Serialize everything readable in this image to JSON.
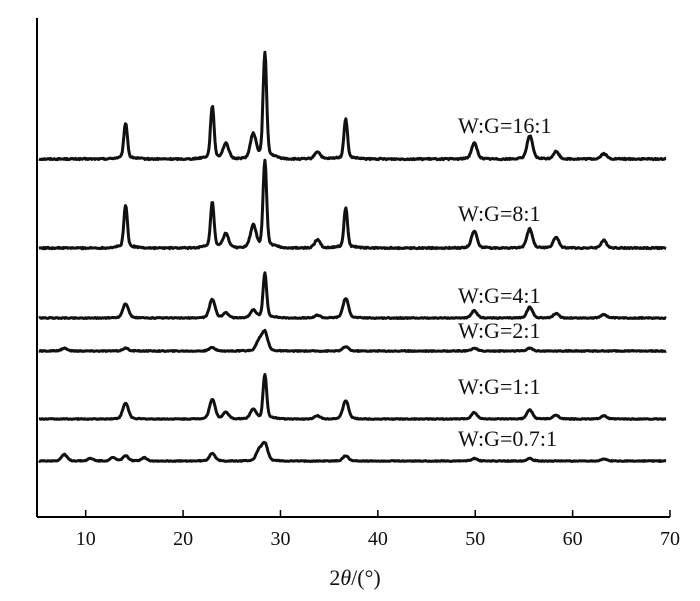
{
  "chart_data": {
    "type": "line",
    "xlabel_prefix": "2",
    "xlabel_symbol": "θ",
    "xlabel_suffix": "/(°)",
    "ylabel": "",
    "xlim": [
      5,
      70
    ],
    "xticks": [
      10,
      20,
      30,
      40,
      50,
      60,
      70
    ],
    "yticks_visible": false,
    "grid": false,
    "legend": "none",
    "peak_positions_2theta": [
      14.1,
      23.0,
      24.4,
      27.2,
      28.4,
      33.8,
      36.7,
      49.9,
      55.6,
      58.3,
      63.2
    ],
    "series": [
      {
        "name": "W:G=16:1",
        "baseline_offset": 5,
        "peaks": [
          [
            14.1,
            34
          ],
          [
            23.0,
            50
          ],
          [
            24.4,
            14
          ],
          [
            27.2,
            22
          ],
          [
            28.4,
            100
          ],
          [
            33.8,
            7
          ],
          [
            36.7,
            38
          ],
          [
            49.9,
            15
          ],
          [
            55.6,
            22
          ],
          [
            58.3,
            7
          ],
          [
            63.2,
            5
          ]
        ]
      },
      {
        "name": "W:G=8:1",
        "baseline_offset": 4,
        "peaks": [
          [
            14.1,
            40
          ],
          [
            23.0,
            43
          ],
          [
            24.4,
            13
          ],
          [
            27.2,
            20
          ],
          [
            28.4,
            82
          ],
          [
            33.8,
            8
          ],
          [
            36.7,
            38
          ],
          [
            49.9,
            16
          ],
          [
            55.6,
            18
          ],
          [
            58.3,
            10
          ],
          [
            63.2,
            7
          ]
        ]
      },
      {
        "name": "W:G=4:1",
        "baseline_offset": 3,
        "peaks": [
          [
            14.1,
            20
          ],
          [
            23.0,
            26
          ],
          [
            24.4,
            7
          ],
          [
            27.2,
            10
          ],
          [
            28.4,
            62
          ],
          [
            33.8,
            4
          ],
          [
            36.7,
            27
          ],
          [
            49.9,
            10
          ],
          [
            55.6,
            15
          ],
          [
            58.3,
            6
          ],
          [
            63.2,
            5
          ]
        ]
      },
      {
        "name": "W:G=2:1",
        "baseline_offset": 2,
        "peaks": [
          [
            7.8,
            4
          ],
          [
            14.1,
            4
          ],
          [
            23.0,
            5
          ],
          [
            27.8,
            14
          ],
          [
            28.4,
            26
          ],
          [
            36.7,
            6
          ],
          [
            49.9,
            4
          ],
          [
            55.6,
            4
          ]
        ]
      },
      {
        "name": "W:G=1:1",
        "baseline_offset": 1,
        "peaks": [
          [
            14.1,
            24
          ],
          [
            23.0,
            30
          ],
          [
            24.4,
            10
          ],
          [
            27.2,
            14
          ],
          [
            28.4,
            68
          ],
          [
            33.8,
            5
          ],
          [
            36.7,
            28
          ],
          [
            49.9,
            10
          ],
          [
            55.6,
            14
          ],
          [
            58.3,
            6
          ],
          [
            63.2,
            5
          ]
        ]
      },
      {
        "name": "W:G=0.7:1",
        "baseline_offset": 0,
        "peaks": [
          [
            7.8,
            10
          ],
          [
            10.5,
            4
          ],
          [
            12.8,
            5
          ],
          [
            14.1,
            8
          ],
          [
            16.0,
            5
          ],
          [
            23.0,
            12
          ],
          [
            27.8,
            16
          ],
          [
            28.4,
            26
          ],
          [
            36.7,
            8
          ],
          [
            49.9,
            4
          ],
          [
            55.6,
            4
          ],
          [
            63.2,
            3
          ]
        ]
      }
    ]
  }
}
